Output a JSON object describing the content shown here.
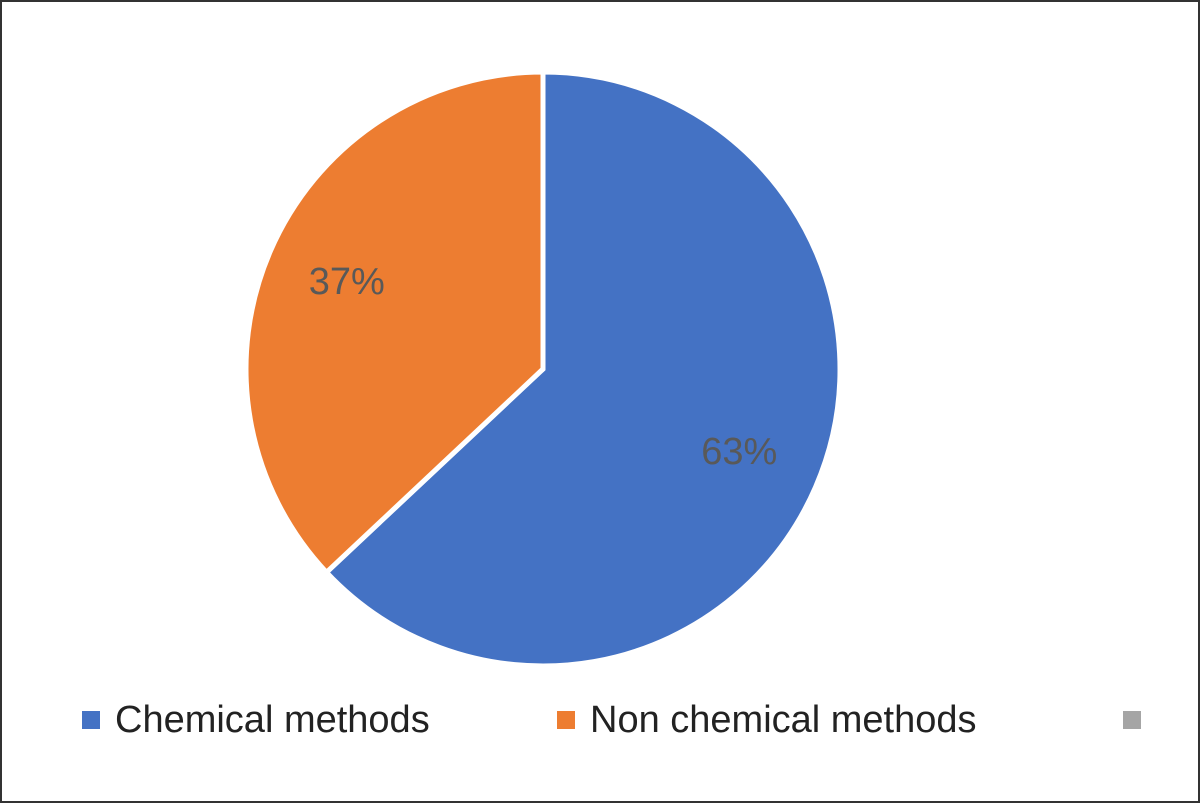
{
  "chart_data": {
    "type": "pie",
    "categories": [
      "Chemical methods",
      "Non chemical methods",
      null
    ],
    "values": [
      63,
      37,
      0
    ],
    "value_labels": [
      "63%",
      "37%",
      null
    ],
    "colors": [
      "#4472c4",
      "#ed7d31",
      "#a5a5a5"
    ],
    "legend": "bottom"
  }
}
